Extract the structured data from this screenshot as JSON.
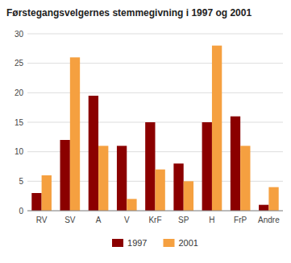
{
  "chart_data": {
    "type": "bar",
    "title": "Førstegangsvelgernes stemmegivning i 1997 og 2001",
    "categories": [
      "RV",
      "SV",
      "A",
      "V",
      "KrF",
      "SP",
      "H",
      "FrP",
      "Andre"
    ],
    "series": [
      {
        "name": "1997",
        "color": "#8B0000",
        "values": [
          3,
          12,
          19.5,
          11,
          15,
          8,
          15,
          16,
          1
        ]
      },
      {
        "name": "2001",
        "color": "#F5A040",
        "values": [
          6,
          26,
          11,
          2,
          7,
          5,
          28,
          11,
          4
        ]
      }
    ],
    "ylim": [
      0,
      30
    ],
    "yticks": [
      0,
      5,
      10,
      15,
      20,
      25,
      30
    ],
    "grid": true,
    "legend": "bottom"
  }
}
